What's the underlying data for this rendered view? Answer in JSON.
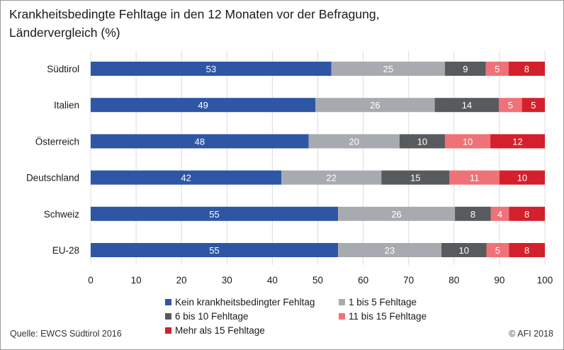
{
  "chart_data": {
    "type": "bar",
    "orientation": "horizontal",
    "stacked": true,
    "title_lines": [
      "Krankheitsbedingte Fehltage in den 12 Monaten vor der Befragung,",
      "Ländervergleich (%)"
    ],
    "categories": [
      "Südtirol",
      "Italien",
      "Österreich",
      "Deutschland",
      "Schweiz",
      "EU-28"
    ],
    "series": [
      {
        "name": "Kein krankheitsbedingter Fehltag",
        "color": "#2e56a5",
        "values": [
          53,
          49,
          48,
          42,
          55,
          55
        ]
      },
      {
        "name": "1 bis 5 Fehltage",
        "color": "#a7abaf",
        "values": [
          25,
          26,
          20,
          22,
          26,
          23
        ]
      },
      {
        "name": "6 bis 10 Fehltage",
        "color": "#585b5e",
        "values": [
          9,
          14,
          10,
          15,
          8,
          10
        ]
      },
      {
        "name": "11 bis 15 Fehltage",
        "color": "#ef7278",
        "values": [
          5,
          5,
          10,
          11,
          4,
          5
        ]
      },
      {
        "name": "Mehr als 15 Fehltage",
        "color": "#d4202c",
        "values": [
          8,
          5,
          12,
          10,
          8,
          8
        ]
      }
    ],
    "xlim": [
      0,
      100
    ],
    "x_ticks": [
      "0",
      "10",
      "20",
      "30",
      "40",
      "50",
      "60",
      "70",
      "80",
      "90",
      "100"
    ],
    "grid": true,
    "legend_position": "bottom"
  },
  "footer": {
    "source": "Quelle: EWCS Südtirol 2016",
    "copyright": "© AFI 2018"
  }
}
